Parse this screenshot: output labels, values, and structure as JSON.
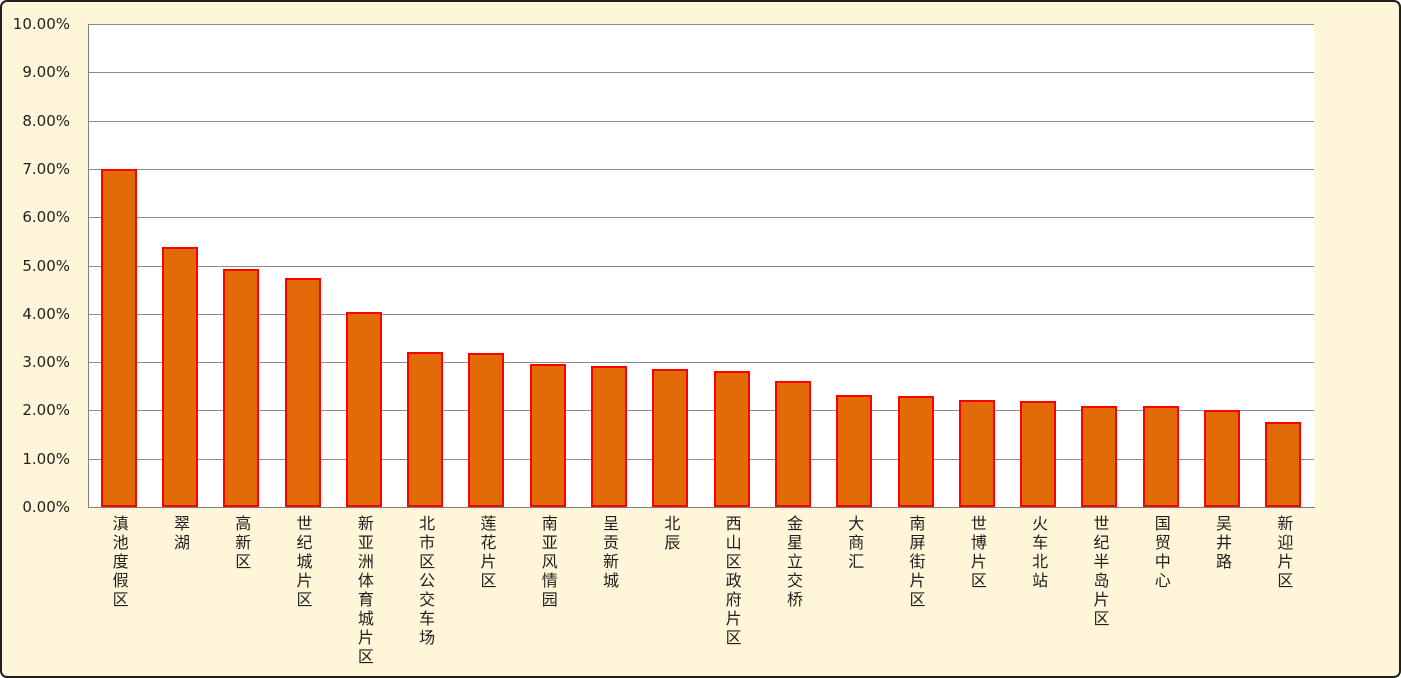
{
  "chart": {
    "background_color": "#FFF5D9",
    "plot_background_color": "#FFFFFF",
    "outer_border_color": "#1F1F1F",
    "bar_fill_color": "#E36A09",
    "bar_border_color": "#FF0000",
    "gridline_color": "#8C8C8C",
    "axis_line_color": "#808080",
    "text_color": "#1F1F1F"
  },
  "chart_data": {
    "type": "bar",
    "title": "",
    "xlabel": "",
    "ylabel": "",
    "grid": true,
    "legend": false,
    "ylim": [
      0,
      10
    ],
    "y_major_unit": 1,
    "y_tick_labels": [
      "0.00%",
      "1.00%",
      "2.00%",
      "3.00%",
      "4.00%",
      "5.00%",
      "6.00%",
      "7.00%",
      "8.00%",
      "9.00%",
      "10.00%"
    ],
    "categories": [
      "滇池度假区",
      "翠湖",
      "高新区",
      "世纪城片区",
      "新亚洲体育城片区",
      "北市区公交车场",
      "莲花片区",
      "南亚风情园",
      "呈贡新城",
      "北辰",
      "西山区政府片区",
      "金星立交桥",
      "大商汇",
      "南屏街片区",
      "世博片区",
      "火车北站",
      "世纪半岛片区",
      "国贸中心",
      "吴井路",
      "新迎片区"
    ],
    "values": [
      7.0,
      5.38,
      4.93,
      4.74,
      4.04,
      3.21,
      3.18,
      2.97,
      2.91,
      2.85,
      2.81,
      2.61,
      2.31,
      2.3,
      2.22,
      2.2,
      2.1,
      2.1,
      2.0,
      1.77
    ]
  }
}
